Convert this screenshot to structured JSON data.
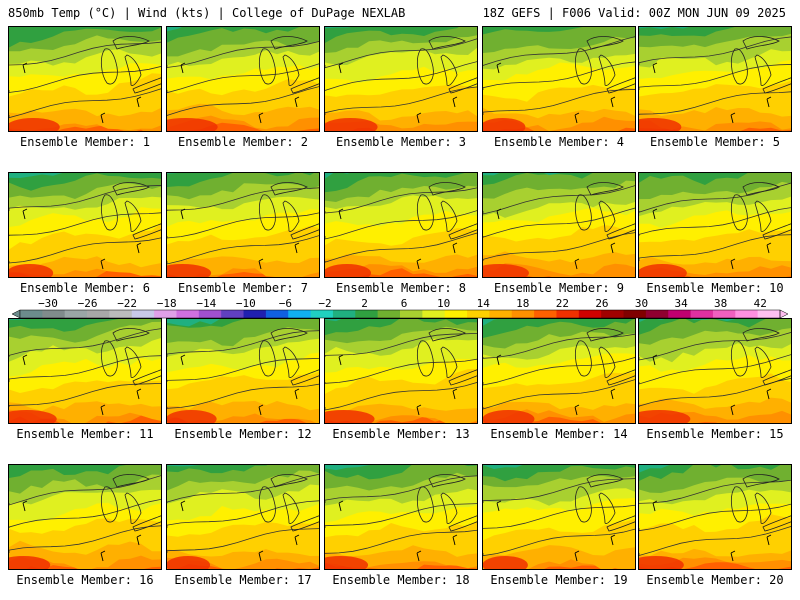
{
  "header": {
    "left": "850mb Temp (°C) | Wind (kts) | College of DuPage NEXLAB",
    "right": "18Z GEFS | F006 Valid: 00Z MON JUN 09 2025"
  },
  "panels": [
    {
      "caption": "Ensemble Member: 1"
    },
    {
      "caption": "Ensemble Member: 2"
    },
    {
      "caption": "Ensemble Member: 3"
    },
    {
      "caption": "Ensemble Member: 4"
    },
    {
      "caption": "Ensemble Member: 5"
    },
    {
      "caption": "Ensemble Member: 6"
    },
    {
      "caption": "Ensemble Member: 7"
    },
    {
      "caption": "Ensemble Member: 8"
    },
    {
      "caption": "Ensemble Member: 9"
    },
    {
      "caption": "Ensemble Member: 10"
    },
    {
      "caption": "Ensemble Member: 11"
    },
    {
      "caption": "Ensemble Member: 12"
    },
    {
      "caption": "Ensemble Member: 13"
    },
    {
      "caption": "Ensemble Member: 14"
    },
    {
      "caption": "Ensemble Member: 15"
    },
    {
      "caption": "Ensemble Member: 16"
    },
    {
      "caption": "Ensemble Member: 17"
    },
    {
      "caption": "Ensemble Member: 18"
    },
    {
      "caption": "Ensemble Member: 19"
    },
    {
      "caption": "Ensemble Member: 20"
    }
  ],
  "colorbar": {
    "tick_labels": [
      "−30",
      "−26",
      "−22",
      "−18",
      "−14",
      "−10",
      "−6",
      "−2",
      "2",
      "6",
      "10",
      "14",
      "18",
      "22",
      "26",
      "30",
      "34",
      "38",
      "42"
    ],
    "colors": [
      "#6c8c8c",
      "#808c8c",
      "#9aa6a6",
      "#a8a8a8",
      "#bcbcbc",
      "#c8c8e8",
      "#e0a0e8",
      "#d070e0",
      "#a050d0",
      "#6040c0",
      "#2020b0",
      "#1060e0",
      "#10b0f0",
      "#20d0c0",
      "#20b080",
      "#30a040",
      "#70b030",
      "#a8d030",
      "#e0f020",
      "#fff000",
      "#ffd000",
      "#ffb000",
      "#ff9000",
      "#ff6000",
      "#f03000",
      "#d00000",
      "#a00000",
      "#800000",
      "#900030",
      "#c00070",
      "#e030a0",
      "#f060c0",
      "#ff90e0",
      "#ffc0f0"
    ],
    "field_colors": [
      "#20b080",
      "#30a040",
      "#70b030",
      "#a8d030",
      "#e0f020",
      "#fff000",
      "#ffd000",
      "#ffb000",
      "#ff9000",
      "#ff6000",
      "#f03000"
    ]
  }
}
